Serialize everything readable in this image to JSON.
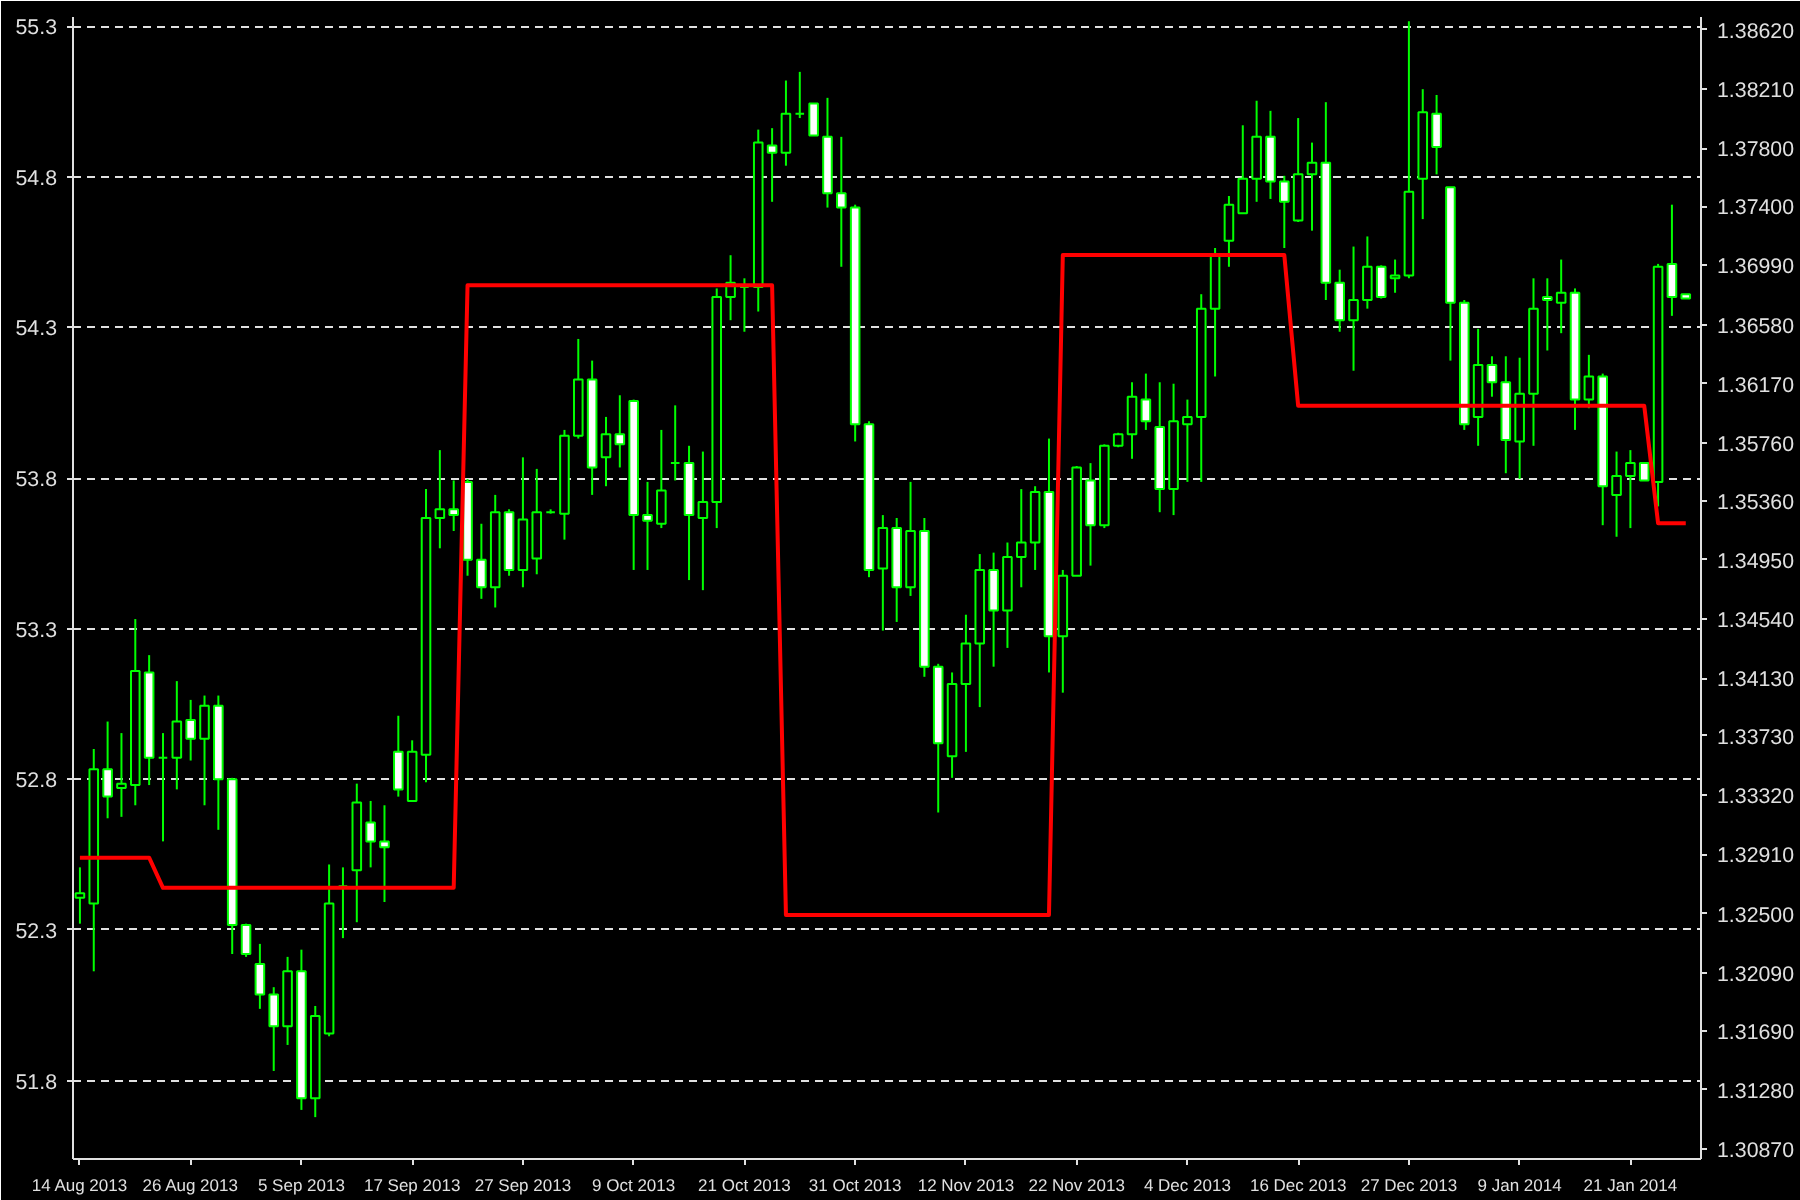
{
  "chart_data": {
    "type": "candlestick",
    "color": "#00ff00",
    "grid": true,
    "categories": [
      "14 Aug 2013",
      null,
      null,
      null,
      null,
      null,
      null,
      null,
      "26 Aug 2013",
      null,
      null,
      null,
      null,
      null,
      null,
      null,
      "5 Sep 2013",
      null,
      null,
      null,
      null,
      null,
      null,
      null,
      "17 Sep 2013",
      null,
      null,
      null,
      null,
      null,
      null,
      null,
      "27 Sep 2013",
      null,
      null,
      null,
      null,
      null,
      null,
      null,
      "9 Oct 2013",
      null,
      null,
      null,
      null,
      null,
      null,
      null,
      "21 Oct 2013",
      null,
      null,
      null,
      null,
      null,
      null,
      null,
      "31 Oct 2013",
      null,
      null,
      null,
      null,
      null,
      null,
      null,
      "12 Nov 2013",
      null,
      null,
      null,
      null,
      null,
      null,
      null,
      "22 Nov 2013",
      null,
      null,
      null,
      null,
      null,
      null,
      null,
      "4 Dec 2013",
      null,
      null,
      null,
      null,
      null,
      null,
      null,
      "16 Dec 2013",
      null,
      null,
      null,
      null,
      null,
      null,
      null,
      "27 Dec 2013",
      null,
      null,
      null,
      null,
      null,
      null,
      null,
      "9 Jan 2014",
      null,
      null,
      null,
      null,
      null,
      null,
      null,
      "21 Jan 2014",
      null,
      null,
      null,
      null
    ],
    "ohlc": [
      [
        1.3261,
        1.3282,
        1.3243,
        1.3264
      ],
      [
        1.3257,
        1.3364,
        1.321,
        1.335
      ],
      [
        1.335,
        1.3383,
        1.3316,
        1.3331
      ],
      [
        1.3337,
        1.3375,
        1.3317,
        1.334
      ],
      [
        1.3339,
        1.3454,
        1.3325,
        1.3418
      ],
      [
        1.3417,
        1.3429,
        1.3339,
        1.3358
      ],
      [
        1.3358,
        1.3375,
        1.33,
        1.3358
      ],
      [
        1.3358,
        1.3411,
        1.3336,
        1.3383
      ],
      [
        1.3384,
        1.3398,
        1.3356,
        1.3371
      ],
      [
        1.3371,
        1.3401,
        1.3325,
        1.3394
      ],
      [
        1.3394,
        1.3401,
        1.3308,
        1.3343
      ],
      [
        1.3343,
        1.3344,
        1.3222,
        1.3242
      ],
      [
        1.3242,
        1.3243,
        1.322,
        1.3222
      ],
      [
        1.3215,
        1.3229,
        1.3184,
        1.3194
      ],
      [
        1.3194,
        1.3199,
        1.3141,
        1.3172
      ],
      [
        1.3172,
        1.322,
        1.3159,
        1.321
      ],
      [
        1.321,
        1.3225,
        1.3114,
        1.3122
      ],
      [
        1.3122,
        1.3186,
        1.3109,
        1.3179
      ],
      [
        1.3167,
        1.3284,
        1.3165,
        1.3257
      ],
      [
        1.3269,
        1.3282,
        1.3233,
        1.3269
      ],
      [
        1.328,
        1.334,
        1.3244,
        1.3327
      ],
      [
        1.3313,
        1.3328,
        1.3282,
        1.33
      ],
      [
        1.33,
        1.3325,
        1.3258,
        1.3296
      ],
      [
        1.3362,
        1.3387,
        1.3331,
        1.3336
      ],
      [
        1.3328,
        1.337,
        1.3328,
        1.3362
      ],
      [
        1.336,
        1.3544,
        1.3341,
        1.3524
      ],
      [
        1.3524,
        1.3571,
        1.3503,
        1.353
      ],
      [
        1.353,
        1.355,
        1.3515,
        1.3526
      ],
      [
        1.3549,
        1.3551,
        1.3484,
        1.3495
      ],
      [
        1.3495,
        1.352,
        1.3468,
        1.3476
      ],
      [
        1.3476,
        1.354,
        1.3462,
        1.3528
      ],
      [
        1.3528,
        1.353,
        1.3484,
        1.3488
      ],
      [
        1.3488,
        1.3566,
        1.3476,
        1.3523
      ],
      [
        1.3496,
        1.3558,
        1.3485,
        1.3528
      ],
      [
        1.3528,
        1.353,
        1.3527,
        1.3528
      ],
      [
        1.3527,
        1.3585,
        1.3509,
        1.3581
      ],
      [
        1.3581,
        1.3648,
        1.3579,
        1.362
      ],
      [
        1.362,
        1.3633,
        1.354,
        1.3559
      ],
      [
        1.3566,
        1.3594,
        1.3546,
        1.3582
      ],
      [
        1.3582,
        1.3609,
        1.3559,
        1.3575
      ],
      [
        1.3605,
        1.3606,
        1.3488,
        1.3526
      ],
      [
        1.3526,
        1.3549,
        1.3488,
        1.3522
      ],
      [
        1.352,
        1.3585,
        1.3517,
        1.3543
      ],
      [
        1.3562,
        1.3602,
        1.355,
        1.3562
      ],
      [
        1.3562,
        1.3574,
        1.3481,
        1.3526
      ],
      [
        1.3524,
        1.357,
        1.3474,
        1.3535
      ],
      [
        1.3535,
        1.3683,
        1.3517,
        1.3677
      ],
      [
        1.3677,
        1.3706,
        1.3661,
        1.3687
      ],
      [
        1.3684,
        1.369,
        1.3653,
        1.3684
      ],
      [
        1.3684,
        1.3793,
        1.3667,
        1.3784
      ],
      [
        1.3782,
        1.3794,
        1.3743,
        1.3777
      ],
      [
        1.3777,
        1.3827,
        1.3768,
        1.3804
      ],
      [
        1.3804,
        1.3833,
        1.3801,
        1.3804
      ],
      [
        1.3811,
        1.3811,
        1.3789,
        1.3789
      ],
      [
        1.3788,
        1.3815,
        1.3739,
        1.3749
      ],
      [
        1.3749,
        1.3788,
        1.3698,
        1.3739
      ],
      [
        1.3739,
        1.3741,
        1.3577,
        1.3589
      ],
      [
        1.3589,
        1.3591,
        1.3483,
        1.3488
      ],
      [
        1.3489,
        1.3526,
        1.3446,
        1.3517
      ],
      [
        1.3517,
        1.3524,
        1.3452,
        1.3476
      ],
      [
        1.3476,
        1.3549,
        1.347,
        1.3515
      ],
      [
        1.3515,
        1.3524,
        1.3414,
        1.3421
      ],
      [
        1.3421,
        1.3423,
        1.332,
        1.3368
      ],
      [
        1.3359,
        1.3417,
        1.3344,
        1.3409
      ],
      [
        1.3409,
        1.3457,
        1.3362,
        1.3437
      ],
      [
        1.3437,
        1.3499,
        1.3393,
        1.3488
      ],
      [
        1.3488,
        1.35,
        1.3421,
        1.346
      ],
      [
        1.346,
        1.3507,
        1.3434,
        1.3497
      ],
      [
        1.3497,
        1.3544,
        1.3476,
        1.3507
      ],
      [
        1.3507,
        1.3546,
        1.3488,
        1.3542
      ],
      [
        1.3542,
        1.3579,
        1.3417,
        1.3442
      ],
      [
        1.3442,
        1.3488,
        1.3403,
        1.3484
      ],
      [
        1.3484,
        1.356,
        1.3484,
        1.3559
      ],
      [
        1.355,
        1.3562,
        1.3491,
        1.3519
      ],
      [
        1.3519,
        1.3575,
        1.3517,
        1.3574
      ],
      [
        1.3574,
        1.3583,
        1.3573,
        1.3582
      ],
      [
        1.3582,
        1.3618,
        1.3565,
        1.3608
      ],
      [
        1.3606,
        1.3624,
        1.3585,
        1.3591
      ],
      [
        1.3587,
        1.3618,
        1.3528,
        1.3544
      ],
      [
        1.3544,
        1.3617,
        1.3526,
        1.3591
      ],
      [
        1.3589,
        1.3606,
        1.3549,
        1.3594
      ],
      [
        1.3594,
        1.3679,
        1.3549,
        1.3669
      ],
      [
        1.3669,
        1.3711,
        1.3622,
        1.3706
      ],
      [
        1.3716,
        1.3747,
        1.3698,
        1.3741
      ],
      [
        1.3735,
        1.3796,
        1.3735,
        1.3759
      ],
      [
        1.3759,
        1.3813,
        1.3743,
        1.3788
      ],
      [
        1.3788,
        1.3806,
        1.3745,
        1.3757
      ],
      [
        1.3757,
        1.3761,
        1.3711,
        1.3743
      ],
      [
        1.373,
        1.3801,
        1.3729,
        1.3762
      ],
      [
        1.3762,
        1.3784,
        1.3723,
        1.377
      ],
      [
        1.377,
        1.3812,
        1.3675,
        1.3687
      ],
      [
        1.3687,
        1.3696,
        1.3653,
        1.3661
      ],
      [
        1.3661,
        1.3712,
        1.3626,
        1.3675
      ],
      [
        1.3675,
        1.3719,
        1.3669,
        1.3698
      ],
      [
        1.3698,
        1.3699,
        1.3676,
        1.3677
      ],
      [
        1.369,
        1.3703,
        1.368,
        1.3692
      ],
      [
        1.3692,
        1.3868,
        1.369,
        1.375
      ],
      [
        1.3759,
        1.3821,
        1.3731,
        1.3805
      ],
      [
        1.3804,
        1.3817,
        1.3762,
        1.3781
      ],
      [
        1.3753,
        1.3753,
        1.3633,
        1.3673
      ],
      [
        1.3673,
        1.3675,
        1.3585,
        1.3589
      ],
      [
        1.3594,
        1.3655,
        1.3574,
        1.363
      ],
      [
        1.363,
        1.3636,
        1.3608,
        1.3618
      ],
      [
        1.3618,
        1.3636,
        1.3555,
        1.3578
      ],
      [
        1.3577,
        1.3635,
        1.3551,
        1.361
      ],
      [
        1.361,
        1.369,
        1.3574,
        1.3669
      ],
      [
        1.3677,
        1.369,
        1.364,
        1.3675
      ],
      [
        1.3673,
        1.3703,
        1.3652,
        1.368
      ],
      [
        1.368,
        1.3683,
        1.3585,
        1.3606
      ],
      [
        1.3606,
        1.3637,
        1.36,
        1.3622
      ],
      [
        1.3622,
        1.3624,
        1.3519,
        1.3546
      ],
      [
        1.354,
        1.357,
        1.3511,
        1.3553
      ],
      [
        1.3553,
        1.3571,
        1.3517,
        1.3562
      ],
      [
        1.3562,
        1.3562,
        1.355,
        1.355
      ],
      [
        1.3549,
        1.37,
        1.3532,
        1.3698
      ],
      [
        1.37,
        1.3741,
        1.3664,
        1.3677
      ],
      [
        1.3679,
        1.3679,
        1.3676,
        1.3676
      ]
    ],
    "ylim": [
      1.308,
      1.3871
    ],
    "yticks": [
      {
        "value": 1.3862,
        "label": "1.38620"
      },
      {
        "value": 1.3821,
        "label": "1.38210"
      },
      {
        "value": 1.378,
        "label": "1.37800"
      },
      {
        "value": 1.374,
        "label": "1.37400"
      },
      {
        "value": 1.3699,
        "label": "1.36990"
      },
      {
        "value": 1.3658,
        "label": "1.36580"
      },
      {
        "value": 1.3617,
        "label": "1.36170"
      },
      {
        "value": 1.3576,
        "label": "1.35760"
      },
      {
        "value": 1.3536,
        "label": "1.35360"
      },
      {
        "value": 1.3495,
        "label": "1.34950"
      },
      {
        "value": 1.3454,
        "label": "1.34540"
      },
      {
        "value": 1.3413,
        "label": "1.34130"
      },
      {
        "value": 1.3373,
        "label": "1.33730"
      },
      {
        "value": 1.3332,
        "label": "1.33320"
      },
      {
        "value": 1.3291,
        "label": "1.32910"
      },
      {
        "value": 1.325,
        "label": "1.32500"
      },
      {
        "value": 1.3209,
        "label": "1.32090"
      },
      {
        "value": 1.3169,
        "label": "1.31690"
      },
      {
        "value": 1.3128,
        "label": "1.31280"
      },
      {
        "value": 1.3087,
        "label": "1.30870"
      }
    ],
    "y2lim": [
      51.54,
      55.33
    ],
    "y2ticks": [
      51.8,
      52.3,
      52.8,
      53.3,
      53.8,
      54.3,
      54.8,
      55.3
    ],
    "series": [
      {
        "type": "line",
        "axis": "y2",
        "color": "#ff0000",
        "values": [
          52.54,
          52.54,
          52.54,
          52.54,
          52.54,
          52.54,
          52.44,
          52.44,
          52.44,
          52.44,
          52.44,
          52.44,
          52.44,
          52.44,
          52.44,
          52.44,
          52.44,
          52.44,
          52.44,
          52.44,
          52.44,
          52.44,
          52.44,
          52.44,
          52.44,
          52.44,
          52.44,
          52.44,
          54.44,
          54.44,
          54.44,
          54.44,
          54.44,
          54.44,
          54.44,
          54.44,
          54.44,
          54.44,
          54.44,
          54.44,
          54.44,
          54.44,
          54.44,
          54.44,
          54.44,
          54.44,
          54.44,
          54.44,
          54.44,
          54.44,
          54.44,
          52.35,
          52.35,
          52.35,
          52.35,
          52.35,
          52.35,
          52.35,
          52.35,
          52.35,
          52.35,
          52.35,
          52.35,
          52.35,
          52.35,
          52.35,
          52.35,
          52.35,
          52.35,
          52.35,
          52.35,
          54.54,
          54.54,
          54.54,
          54.54,
          54.54,
          54.54,
          54.54,
          54.54,
          54.54,
          54.54,
          54.54,
          54.54,
          54.54,
          54.54,
          54.54,
          54.54,
          54.54,
          54.04,
          54.04,
          54.04,
          54.04,
          54.04,
          54.04,
          54.04,
          54.04,
          54.04,
          54.04,
          54.04,
          54.04,
          54.04,
          54.04,
          54.04,
          54.04,
          54.04,
          54.04,
          54.04,
          54.04,
          54.04,
          54.04,
          54.04,
          54.04,
          54.04,
          54.04,
          53.65,
          53.65,
          53.65
        ]
      }
    ]
  }
}
